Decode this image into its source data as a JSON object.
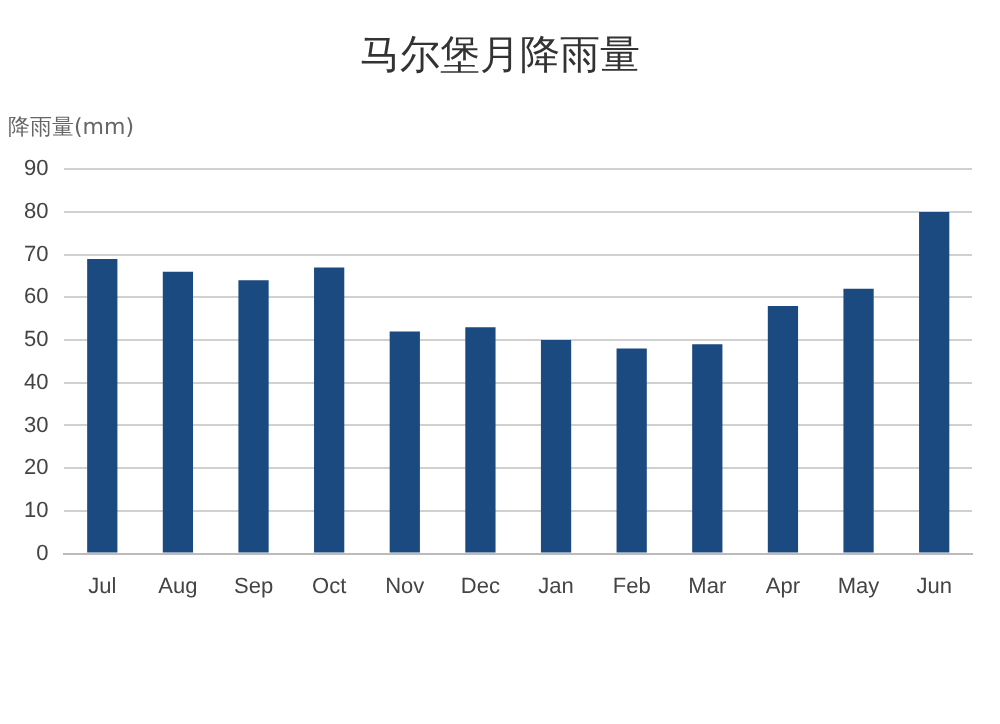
{
  "chart_data": {
    "type": "bar",
    "title": "马尔堡月降雨量",
    "ylabel": "降雨量(mm)",
    "categories": [
      "Jul",
      "Aug",
      "Sep",
      "Oct",
      "Nov",
      "Dec",
      "Jan",
      "Feb",
      "Mar",
      "Apr",
      "May",
      "Jun"
    ],
    "values": [
      69,
      66,
      64,
      67,
      52,
      53,
      50,
      48,
      49,
      58,
      62,
      80
    ],
    "color": "#1a4a80",
    "ylim": [
      0,
      90
    ],
    "yticks": [
      0,
      10,
      20,
      30,
      40,
      50,
      60,
      70,
      80,
      90
    ],
    "grid": "y",
    "legend": false
  }
}
